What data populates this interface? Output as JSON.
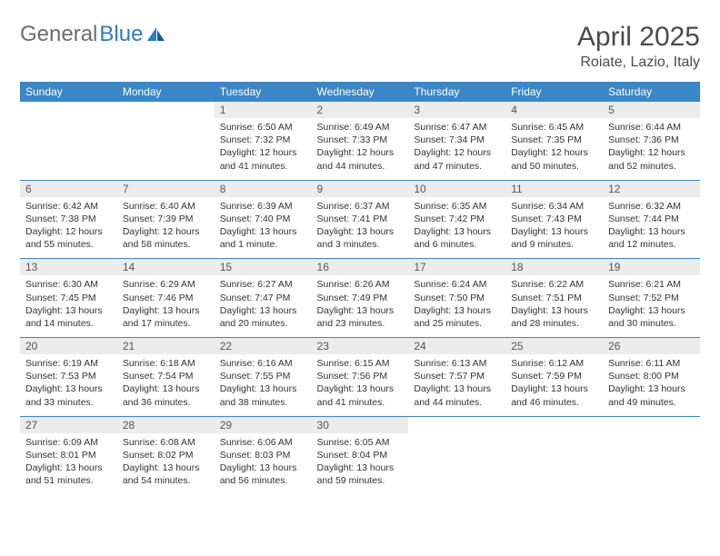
{
  "logo": {
    "part1": "General",
    "part2": "Blue"
  },
  "title": "April 2025",
  "location": "Roiate, Lazio, Italy",
  "colors": {
    "header_bg": "#3a87c7",
    "header_text": "#ffffff",
    "daynum_bg": "#ececec",
    "border": "#3a87c7",
    "logo_gray": "#6d6d6d",
    "logo_blue": "#2f7cc0"
  },
  "weekdays": [
    "Sunday",
    "Monday",
    "Tuesday",
    "Wednesday",
    "Thursday",
    "Friday",
    "Saturday"
  ],
  "weeks": [
    [
      null,
      null,
      {
        "n": "1",
        "sr": "6:50 AM",
        "ss": "7:32 PM",
        "dl": "12 hours and 41 minutes."
      },
      {
        "n": "2",
        "sr": "6:49 AM",
        "ss": "7:33 PM",
        "dl": "12 hours and 44 minutes."
      },
      {
        "n": "3",
        "sr": "6:47 AM",
        "ss": "7:34 PM",
        "dl": "12 hours and 47 minutes."
      },
      {
        "n": "4",
        "sr": "6:45 AM",
        "ss": "7:35 PM",
        "dl": "12 hours and 50 minutes."
      },
      {
        "n": "5",
        "sr": "6:44 AM",
        "ss": "7:36 PM",
        "dl": "12 hours and 52 minutes."
      }
    ],
    [
      {
        "n": "6",
        "sr": "6:42 AM",
        "ss": "7:38 PM",
        "dl": "12 hours and 55 minutes."
      },
      {
        "n": "7",
        "sr": "6:40 AM",
        "ss": "7:39 PM",
        "dl": "12 hours and 58 minutes."
      },
      {
        "n": "8",
        "sr": "6:39 AM",
        "ss": "7:40 PM",
        "dl": "13 hours and 1 minute."
      },
      {
        "n": "9",
        "sr": "6:37 AM",
        "ss": "7:41 PM",
        "dl": "13 hours and 3 minutes."
      },
      {
        "n": "10",
        "sr": "6:35 AM",
        "ss": "7:42 PM",
        "dl": "13 hours and 6 minutes."
      },
      {
        "n": "11",
        "sr": "6:34 AM",
        "ss": "7:43 PM",
        "dl": "13 hours and 9 minutes."
      },
      {
        "n": "12",
        "sr": "6:32 AM",
        "ss": "7:44 PM",
        "dl": "13 hours and 12 minutes."
      }
    ],
    [
      {
        "n": "13",
        "sr": "6:30 AM",
        "ss": "7:45 PM",
        "dl": "13 hours and 14 minutes."
      },
      {
        "n": "14",
        "sr": "6:29 AM",
        "ss": "7:46 PM",
        "dl": "13 hours and 17 minutes."
      },
      {
        "n": "15",
        "sr": "6:27 AM",
        "ss": "7:47 PM",
        "dl": "13 hours and 20 minutes."
      },
      {
        "n": "16",
        "sr": "6:26 AM",
        "ss": "7:49 PM",
        "dl": "13 hours and 23 minutes."
      },
      {
        "n": "17",
        "sr": "6:24 AM",
        "ss": "7:50 PM",
        "dl": "13 hours and 25 minutes."
      },
      {
        "n": "18",
        "sr": "6:22 AM",
        "ss": "7:51 PM",
        "dl": "13 hours and 28 minutes."
      },
      {
        "n": "19",
        "sr": "6:21 AM",
        "ss": "7:52 PM",
        "dl": "13 hours and 30 minutes."
      }
    ],
    [
      {
        "n": "20",
        "sr": "6:19 AM",
        "ss": "7:53 PM",
        "dl": "13 hours and 33 minutes."
      },
      {
        "n": "21",
        "sr": "6:18 AM",
        "ss": "7:54 PM",
        "dl": "13 hours and 36 minutes."
      },
      {
        "n": "22",
        "sr": "6:16 AM",
        "ss": "7:55 PM",
        "dl": "13 hours and 38 minutes."
      },
      {
        "n": "23",
        "sr": "6:15 AM",
        "ss": "7:56 PM",
        "dl": "13 hours and 41 minutes."
      },
      {
        "n": "24",
        "sr": "6:13 AM",
        "ss": "7:57 PM",
        "dl": "13 hours and 44 minutes."
      },
      {
        "n": "25",
        "sr": "6:12 AM",
        "ss": "7:59 PM",
        "dl": "13 hours and 46 minutes."
      },
      {
        "n": "26",
        "sr": "6:11 AM",
        "ss": "8:00 PM",
        "dl": "13 hours and 49 minutes."
      }
    ],
    [
      {
        "n": "27",
        "sr": "6:09 AM",
        "ss": "8:01 PM",
        "dl": "13 hours and 51 minutes."
      },
      {
        "n": "28",
        "sr": "6:08 AM",
        "ss": "8:02 PM",
        "dl": "13 hours and 54 minutes."
      },
      {
        "n": "29",
        "sr": "6:06 AM",
        "ss": "8:03 PM",
        "dl": "13 hours and 56 minutes."
      },
      {
        "n": "30",
        "sr": "6:05 AM",
        "ss": "8:04 PM",
        "dl": "13 hours and 59 minutes."
      },
      null,
      null,
      null
    ]
  ],
  "labels": {
    "sunrise": "Sunrise: ",
    "sunset": "Sunset: ",
    "daylight": "Daylight: "
  }
}
